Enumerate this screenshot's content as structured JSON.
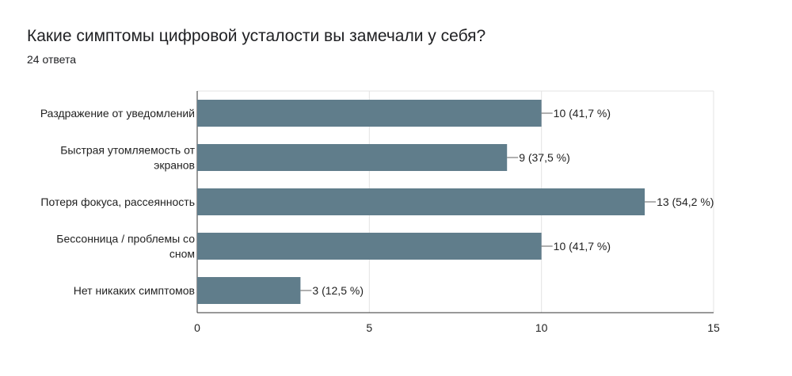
{
  "header": {
    "title": "Какие симптомы цифровой усталости вы замечали у себя?",
    "subtitle": "24 ответа"
  },
  "colors": {
    "bar": "#607d8b",
    "grid": "#e3e3e3",
    "axis": "#333333",
    "connector": "#606060"
  },
  "chart_data": {
    "type": "bar",
    "orientation": "horizontal",
    "title": "Какие симптомы цифровой усталости вы замечали у себя?",
    "categories": [
      [
        "Раздражение от уведомлений"
      ],
      [
        "Быстрая утомляемость от",
        "экранов"
      ],
      [
        "Потеря фокуса, рассеянность"
      ],
      [
        "Бессонница / проблемы со",
        "сном"
      ],
      [
        "Нет никаких симптомов"
      ]
    ],
    "values": [
      10,
      9,
      13,
      10,
      3
    ],
    "value_labels": [
      "10 (41,7 %)",
      "9 (37,5 %)",
      "13 (54,2 %)",
      "10 (41,7 %)",
      "3 (12,5 %)"
    ],
    "xlim": [
      0,
      15
    ],
    "xticks": [
      0,
      5,
      10,
      15
    ],
    "grid": true,
    "legend": "none"
  }
}
